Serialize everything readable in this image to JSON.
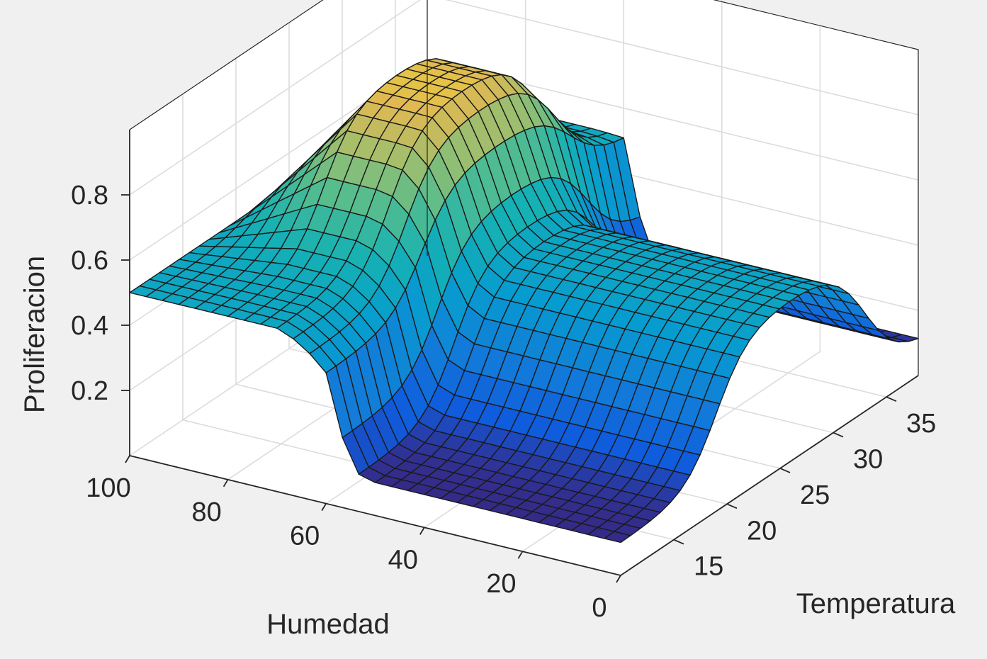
{
  "colors": {
    "figure_background": "#f0f0f0",
    "axes_background": "#ffffff",
    "grid": "#dcdcdc",
    "axis_line": "#262626",
    "mesh_edge": "#1a1a1a",
    "colormap": "parula"
  },
  "chart_data": {
    "type": "surface",
    "title": "",
    "xlabel": "Humedad",
    "ylabel": "Temperatura",
    "zlabel": "Proliferacion",
    "x_label_text": "Humedad",
    "y_label_text": "Temperatura",
    "z_label_text": "Proliferacion",
    "xlim": [
      0,
      100
    ],
    "ylim": [
      10,
      38
    ],
    "zlim": [
      0,
      1
    ],
    "grid": true,
    "x_ticks": [
      0,
      20,
      40,
      60,
      80,
      100
    ],
    "y_ticks": [
      15,
      20,
      25,
      30,
      35
    ],
    "z_ticks": [
      0.2,
      0.4,
      0.6,
      0.8
    ],
    "x_tick_labels": [
      "0",
      "20",
      "40",
      "60",
      "80",
      "100"
    ],
    "y_tick_labels": [
      "15",
      "20",
      "25",
      "30",
      "35"
    ],
    "z_tick_labels": [
      "0.2",
      "0.4",
      "0.6",
      "0.8"
    ],
    "grid_size": [
      31,
      31
    ],
    "humedad_profile": {
      "x": [
        0,
        10,
        20,
        30,
        40,
        50,
        55,
        60,
        65,
        70,
        75,
        80,
        90,
        100
      ],
      "z_low_temperature": [
        0.1,
        0.1,
        0.1,
        0.1,
        0.1,
        0.1,
        0.12,
        0.4,
        0.47,
        0.5,
        0.5,
        0.5,
        0.5,
        0.5
      ],
      "z_mid_temperature": [
        0.5,
        0.5,
        0.5,
        0.5,
        0.5,
        0.5,
        0.55,
        0.75,
        0.9,
        0.9,
        0.9,
        0.9,
        0.7,
        0.5
      ],
      "z_high_temperature": [
        0.1,
        0.1,
        0.1,
        0.1,
        0.1,
        0.1,
        0.15,
        0.5,
        0.5,
        0.5,
        0.5,
        0.5,
        0.5,
        0.5
      ]
    },
    "temperatura_bands": {
      "low_to_mid_center": 19,
      "mid_to_high_center": 33,
      "transition_width": 1.5
    }
  }
}
